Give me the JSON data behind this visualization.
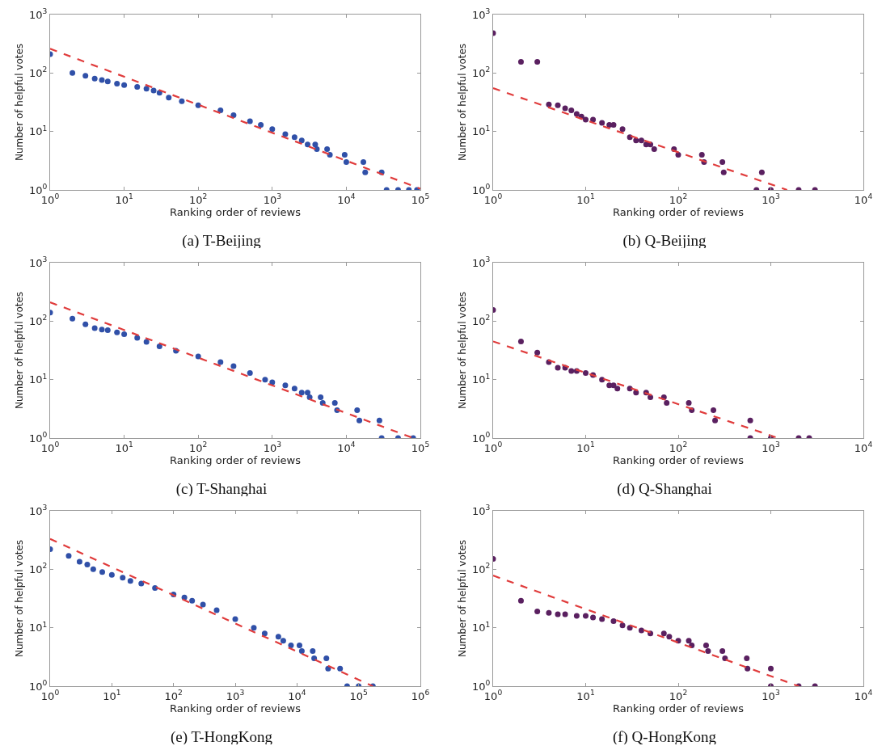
{
  "chart_data": [
    {
      "type": "scatter",
      "title": "(a) T-Beijing",
      "xlabel": "Ranking order of reviews",
      "ylabel": "Number of helpful votes",
      "log": "xy",
      "xlim": [
        1,
        100000
      ],
      "ylim": [
        1,
        1000
      ],
      "xticks": [
        {
          "value": 1,
          "label": "10$^{0}$"
        },
        {
          "value": 10,
          "label": "10$^{1}$"
        },
        {
          "value": 100,
          "label": "10$^{2}$"
        },
        {
          "value": 1000,
          "label": "10$^{3}$"
        },
        {
          "value": 10000,
          "label": "10$^{4}$"
        },
        {
          "value": 100000,
          "label": "10$^{5}$"
        }
      ],
      "yticks": [
        {
          "value": 1,
          "label": "10$^{0}$"
        },
        {
          "value": 10,
          "label": "10$^{1}$"
        },
        {
          "value": 100,
          "label": "10$^{2}$"
        },
        {
          "value": 1000,
          "label": "10$^{3}$"
        }
      ],
      "series": [
        {
          "color": "#3050a8",
          "marker": "circle",
          "x": [
            1,
            2,
            3,
            4,
            5,
            6,
            8,
            10,
            15,
            20,
            25,
            30,
            40,
            60,
            100,
            200,
            300,
            500,
            700,
            1000,
            1500,
            2000,
            2500,
            3000,
            3800,
            4000,
            5500,
            6000,
            9500,
            10000,
            17000,
            18000,
            30000,
            35000,
            50000,
            70000,
            90000
          ],
          "values": [
            210,
            100,
            90,
            80,
            76,
            72,
            66,
            62,
            58,
            54,
            50,
            46,
            38,
            33,
            28,
            23,
            19,
            15,
            13,
            11,
            9,
            8,
            7,
            6,
            6,
            5,
            5,
            4,
            4,
            3,
            3,
            2,
            2,
            1,
            1,
            1,
            1
          ]
        },
        {
          "type": "line",
          "color": "#e03c3c",
          "line_style": "dashed",
          "marker": "none",
          "x": [
            1,
            100000
          ],
          "values": [
            260,
            1.05
          ]
        }
      ]
    },
    {
      "type": "scatter",
      "title": "(b) Q-Beijing",
      "xlabel": "Ranking order of reviews",
      "ylabel": "Number of helpful votes",
      "log": "xy",
      "xlim": [
        1,
        10000
      ],
      "ylim": [
        1,
        1000
      ],
      "xticks": [
        {
          "value": 1,
          "label": "10$^{0}$"
        },
        {
          "value": 10,
          "label": "10$^{1}$"
        },
        {
          "value": 100,
          "label": "10$^{2}$"
        },
        {
          "value": 1000,
          "label": "10$^{3}$"
        },
        {
          "value": 10000,
          "label": "10$^{4}$"
        }
      ],
      "yticks": [
        {
          "value": 1,
          "label": "10$^{0}$"
        },
        {
          "value": 10,
          "label": "10$^{1}$"
        },
        {
          "value": 100,
          "label": "10$^{2}$"
        },
        {
          "value": 1000,
          "label": "10$^{3}$"
        }
      ],
      "series": [
        {
          "color": "#5a2060",
          "marker": "circle",
          "x": [
            1,
            2,
            3,
            4,
            5,
            6,
            7,
            8,
            9,
            10,
            12,
            15,
            18,
            20,
            25,
            30,
            35,
            40,
            45,
            50,
            55,
            90,
            100,
            180,
            190,
            300,
            310,
            800,
            700,
            1000,
            2000,
            3000
          ],
          "values": [
            480,
            155,
            155,
            29,
            28,
            25,
            23,
            20,
            18,
            16,
            16,
            14,
            13,
            13,
            11,
            8,
            7,
            7,
            6,
            6,
            5,
            5,
            4,
            4,
            3,
            3,
            2,
            2,
            1,
            1,
            1,
            1
          ]
        },
        {
          "type": "line",
          "color": "#e03c3c",
          "line_style": "dashed",
          "marker": "none",
          "x": [
            1,
            1500
          ],
          "values": [
            55,
            1
          ]
        }
      ]
    },
    {
      "type": "scatter",
      "title": "(c) T-Shanghai",
      "xlabel": "Ranking order of reviews",
      "ylabel": "Number of helpful votes",
      "log": "xy",
      "xlim": [
        1,
        100000
      ],
      "ylim": [
        1,
        1000
      ],
      "xticks": [
        {
          "value": 1,
          "label": "10$^{0}$"
        },
        {
          "value": 10,
          "label": "10$^{1}$"
        },
        {
          "value": 100,
          "label": "10$^{2}$"
        },
        {
          "value": 1000,
          "label": "10$^{3}$"
        },
        {
          "value": 10000,
          "label": "10$^{4}$"
        },
        {
          "value": 100000,
          "label": "10$^{5}$"
        }
      ],
      "yticks": [
        {
          "value": 1,
          "label": "10$^{0}$"
        },
        {
          "value": 10,
          "label": "10$^{1}$"
        },
        {
          "value": 100,
          "label": "10$^{2}$"
        },
        {
          "value": 1000,
          "label": "10$^{3}$"
        }
      ],
      "series": [
        {
          "color": "#3050a8",
          "marker": "circle",
          "x": [
            1,
            2,
            3,
            4,
            5,
            6,
            8,
            10,
            15,
            20,
            30,
            50,
            100,
            200,
            300,
            500,
            800,
            1000,
            1500,
            2000,
            2500,
            3000,
            3200,
            4500,
            4800,
            7000,
            7500,
            14000,
            15000,
            28000,
            30000,
            50000,
            80000
          ],
          "values": [
            140,
            110,
            88,
            76,
            72,
            70,
            64,
            60,
            52,
            44,
            37,
            31,
            25,
            20,
            17,
            13,
            10,
            9,
            8,
            7,
            6,
            6,
            5,
            5,
            4,
            4,
            3,
            3,
            2,
            2,
            1,
            1,
            1
          ]
        },
        {
          "type": "line",
          "color": "#e03c3c",
          "line_style": "dashed",
          "marker": "none",
          "x": [
            1,
            80000
          ],
          "values": [
            210,
            1
          ]
        }
      ]
    },
    {
      "type": "scatter",
      "title": "(d) Q-Shanghai",
      "xlabel": "Ranking order of reviews",
      "ylabel": "Number of helpful votes",
      "log": "xy",
      "xlim": [
        1,
        10000
      ],
      "ylim": [
        1,
        1000
      ],
      "xticks": [
        {
          "value": 1,
          "label": "10$^{0}$"
        },
        {
          "value": 10,
          "label": "10$^{1}$"
        },
        {
          "value": 100,
          "label": "10$^{2}$"
        },
        {
          "value": 1000,
          "label": "10$^{3}$"
        },
        {
          "value": 10000,
          "label": "10$^{4}$"
        }
      ],
      "yticks": [
        {
          "value": 1,
          "label": "10$^{0}$"
        },
        {
          "value": 10,
          "label": "10$^{1}$"
        },
        {
          "value": 100,
          "label": "10$^{2}$"
        },
        {
          "value": 1000,
          "label": "10$^{3}$"
        }
      ],
      "series": [
        {
          "color": "#5a2060",
          "marker": "circle",
          "x": [
            1,
            2,
            3,
            4,
            5,
            6,
            7,
            8,
            10,
            12,
            15,
            18,
            20,
            22,
            30,
            35,
            45,
            50,
            70,
            75,
            130,
            140,
            240,
            250,
            600,
            600,
            1000,
            2000,
            2600
          ],
          "values": [
            155,
            45,
            29,
            20,
            16,
            16,
            14,
            14,
            13,
            12,
            10,
            8,
            8,
            7,
            7,
            6,
            6,
            5,
            5,
            4,
            4,
            3,
            3,
            2,
            2,
            1,
            1,
            1,
            1
          ]
        },
        {
          "type": "line",
          "color": "#e03c3c",
          "line_style": "dashed",
          "marker": "none",
          "x": [
            1,
            1200
          ],
          "values": [
            45,
            1
          ]
        }
      ]
    },
    {
      "type": "scatter",
      "title": "(e) T-HongKong",
      "xlabel": "Ranking order of reviews",
      "ylabel": "Number of helpful votes",
      "log": "xy",
      "xlim": [
        1,
        1000000
      ],
      "ylim": [
        1,
        1000
      ],
      "xticks": [
        {
          "value": 1,
          "label": "10$^{0}$"
        },
        {
          "value": 10,
          "label": "10$^{1}$"
        },
        {
          "value": 100,
          "label": "10$^{2}$"
        },
        {
          "value": 1000,
          "label": "10$^{3}$"
        },
        {
          "value": 10000,
          "label": "10$^{4}$"
        },
        {
          "value": 100000,
          "label": "10$^{5}$"
        },
        {
          "value": 1000000,
          "label": "10$^{6}$"
        }
      ],
      "yticks": [
        {
          "value": 1,
          "label": "10$^{0}$"
        },
        {
          "value": 10,
          "label": "10$^{1}$"
        },
        {
          "value": 100,
          "label": "10$^{2}$"
        },
        {
          "value": 1000,
          "label": "10$^{3}$"
        }
      ],
      "series": [
        {
          "color": "#3050a8",
          "marker": "circle",
          "x": [
            1,
            2,
            3,
            4,
            5,
            7,
            10,
            15,
            20,
            30,
            50,
            100,
            150,
            200,
            300,
            500,
            1000,
            2000,
            3000,
            5000,
            6000,
            8000,
            11000,
            12000,
            18000,
            19000,
            30000,
            32000,
            50000,
            65000,
            100000,
            170000
          ],
          "values": [
            220,
            170,
            135,
            120,
            100,
            90,
            80,
            72,
            63,
            57,
            48,
            37,
            33,
            29,
            25,
            20,
            14,
            10,
            8,
            7,
            6,
            5,
            5,
            4,
            4,
            3,
            3,
            2,
            2,
            1,
            1,
            1
          ]
        },
        {
          "type": "line",
          "color": "#e03c3c",
          "line_style": "dashed",
          "marker": "none",
          "x": [
            1,
            170000
          ],
          "values": [
            330,
            1
          ]
        }
      ]
    },
    {
      "type": "scatter",
      "title": "(f) Q-HongKong",
      "xlabel": "Ranking order of reviews",
      "ylabel": "Number of helpful votes",
      "log": "xy",
      "xlim": [
        1,
        10000
      ],
      "ylim": [
        1,
        1000
      ],
      "xticks": [
        {
          "value": 1,
          "label": "10$^{0}$"
        },
        {
          "value": 10,
          "label": "10$^{1}$"
        },
        {
          "value": 100,
          "label": "10$^{2}$"
        },
        {
          "value": 1000,
          "label": "10$^{3}$"
        },
        {
          "value": 10000,
          "label": "10$^{4}$"
        }
      ],
      "yticks": [
        {
          "value": 1,
          "label": "10$^{0}$"
        },
        {
          "value": 10,
          "label": "10$^{1}$"
        },
        {
          "value": 100,
          "label": "10$^{2}$"
        },
        {
          "value": 1000,
          "label": "10$^{3}$"
        }
      ],
      "series": [
        {
          "color": "#5a2060",
          "marker": "circle",
          "x": [
            1,
            2,
            3,
            4,
            5,
            6,
            8,
            10,
            12,
            15,
            20,
            25,
            30,
            40,
            50,
            70,
            80,
            100,
            130,
            140,
            200,
            210,
            300,
            320,
            550,
            560,
            1000,
            1000,
            2000,
            3000
          ],
          "values": [
            150,
            29,
            19,
            18,
            17,
            17,
            16,
            16,
            15,
            14,
            13,
            11,
            10,
            9,
            8,
            8,
            7,
            6,
            6,
            5,
            5,
            4,
            4,
            3,
            3,
            2,
            2,
            1,
            1,
            1
          ]
        },
        {
          "type": "line",
          "color": "#e03c3c",
          "line_style": "dashed",
          "marker": "none",
          "x": [
            1,
            2000
          ],
          "values": [
            78,
            1
          ]
        }
      ]
    }
  ]
}
